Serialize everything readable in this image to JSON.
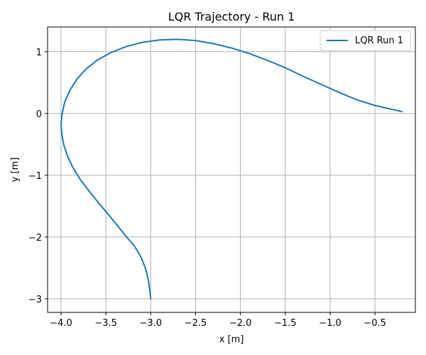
{
  "chart_data": {
    "type": "line",
    "title": "LQR Trajectory - Run 1",
    "xlabel": "x [m]",
    "ylabel": "y [m]",
    "xlim": [
      -4.15,
      -0.05
    ],
    "ylim": [
      -3.22,
      1.4
    ],
    "x_ticks": [
      -4.0,
      -3.5,
      -3.0,
      -2.5,
      -2.0,
      -1.5,
      -1.0,
      -0.5
    ],
    "x_tick_labels": [
      "−4.0",
      "−3.5",
      "−3.0",
      "−2.5",
      "−2.0",
      "−1.5",
      "−1.0",
      "−0.5"
    ],
    "y_ticks": [
      -3,
      -2,
      -1,
      0,
      1
    ],
    "y_tick_labels": [
      "−3",
      "−2",
      "−1",
      "0",
      "1"
    ],
    "grid": true,
    "legend_position": "top-right",
    "colors": {
      "series": "#1f77b4",
      "grid": "#b0b0b0",
      "axis": "#000000"
    },
    "series": [
      {
        "name": "LQR Run 1",
        "x": [
          -3.0,
          -3.02,
          -3.05,
          -3.1,
          -3.18,
          -3.28,
          -3.38,
          -3.48,
          -3.58,
          -3.68,
          -3.78,
          -3.87,
          -3.93,
          -3.97,
          -3.99,
          -4.0,
          -3.99,
          -3.96,
          -3.9,
          -3.82,
          -3.72,
          -3.6,
          -3.45,
          -3.28,
          -3.1,
          -2.9,
          -2.7,
          -2.5,
          -2.3,
          -2.1,
          -1.9,
          -1.7,
          -1.5,
          -1.3,
          -1.1,
          -0.9,
          -0.7,
          -0.5,
          -0.35,
          -0.2
        ],
        "y": [
          -3.0,
          -2.75,
          -2.55,
          -2.35,
          -2.15,
          -1.98,
          -1.8,
          -1.62,
          -1.45,
          -1.27,
          -1.08,
          -0.87,
          -0.68,
          -0.5,
          -0.35,
          -0.2,
          -0.02,
          0.18,
          0.38,
          0.56,
          0.72,
          0.86,
          0.98,
          1.08,
          1.15,
          1.19,
          1.2,
          1.18,
          1.13,
          1.06,
          0.97,
          0.86,
          0.74,
          0.6,
          0.47,
          0.34,
          0.22,
          0.13,
          0.08,
          0.03
        ]
      }
    ]
  }
}
